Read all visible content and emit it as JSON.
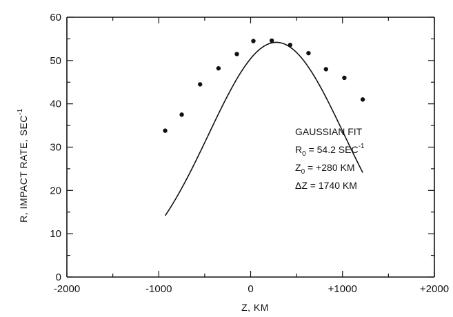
{
  "chart_data": {
    "type": "scatter",
    "xlabel": "Z, KM",
    "ylabel_main": "R, IMPACT RATE, SEC",
    "ylabel_sup": "-1",
    "xlim": [
      -2000,
      2000
    ],
    "ylim": [
      0,
      60
    ],
    "x_ticks": [
      -2000,
      -1000,
      0,
      1000,
      2000
    ],
    "x_tick_labels": [
      "-2000",
      "-1000",
      "0",
      "+1000",
      "+2000"
    ],
    "y_ticks": [
      0,
      10,
      20,
      30,
      40,
      50,
      60
    ],
    "y_tick_labels": [
      "0",
      "10",
      "20",
      "30",
      "40",
      "50",
      "60"
    ],
    "grid": false,
    "series": [
      {
        "type": "scatter",
        "x": [
          -930,
          -750,
          -550,
          -350,
          -150,
          30,
          230,
          430,
          630,
          820,
          1020,
          1220
        ],
        "y": [
          33.8,
          37.5,
          44.5,
          48.2,
          51.5,
          54.5,
          54.6,
          53.6,
          51.7,
          48.0,
          46.0,
          41.0
        ]
      },
      {
        "type": "line",
        "function": "gaussian",
        "R0": 54.2,
        "Z0": 280,
        "deltaZ": 1740,
        "x_range": [
          -930,
          1220
        ]
      }
    ],
    "annotations": {
      "fit_title": "GAUSSIAN FIT",
      "r0_main": "R",
      "r0_sub": "0",
      "r0_value": " = 54.2 SEC",
      "r0_sup": "-1",
      "z0_main": "Z",
      "z0_sub": "0",
      "z0_value": " = +280 KM",
      "dz_text": "ΔZ = 1740 KM"
    }
  }
}
